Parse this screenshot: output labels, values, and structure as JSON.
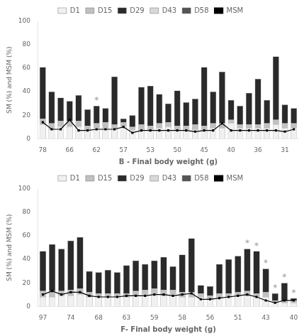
{
  "chart_data": [
    {
      "type": "bar",
      "stacked": true,
      "grid": false,
      "legend": "top",
      "xlabel": "B - Final body weight (g)",
      "ylabel": "SM (%) and MSM (%)",
      "categories": [
        "78",
        null,
        null,
        "66",
        null,
        null,
        "62",
        null,
        null,
        "57",
        null,
        null,
        "53",
        null,
        null,
        "50",
        null,
        null,
        "45",
        null,
        null,
        "40",
        null,
        null,
        "36",
        null,
        null,
        "31",
        null
      ],
      "ylim": [
        0,
        100
      ],
      "yticks": [
        0,
        20,
        40,
        60,
        80,
        100
      ],
      "series": [
        {
          "name": "D1",
          "type": "bar",
          "color": "#f0f0f0",
          "values": [
            12,
            8,
            10,
            10,
            10,
            8,
            9,
            9,
            9,
            10,
            7,
            8,
            8,
            9,
            10,
            8,
            8,
            8,
            8,
            9,
            9,
            13,
            9,
            9,
            9,
            9,
            12,
            9,
            9
          ]
        },
        {
          "name": "D15",
          "type": "bar",
          "color": "#c0c0c0",
          "values": [
            5,
            5,
            5,
            5,
            5,
            3,
            4,
            5,
            3,
            4,
            3,
            4,
            3,
            4,
            4,
            3,
            3,
            4,
            3,
            4,
            4,
            3,
            3,
            3,
            3,
            4,
            4,
            4,
            4
          ]
        },
        {
          "name": "D29",
          "type": "bar",
          "color": "#2a2a2a",
          "values": [
            44,
            27,
            20,
            17,
            22,
            14,
            15,
            12,
            41,
            3,
            10,
            32,
            34,
            25,
            16,
            30,
            20,
            22,
            50,
            27,
            44,
            17,
            16,
            27,
            39,
            20,
            54,
            16,
            13
          ]
        },
        {
          "name": "D43",
          "type": "bar",
          "color": "#d8d8d8",
          "values": [
            0,
            0,
            0,
            0,
            0,
            0,
            0,
            0,
            0,
            0,
            0,
            0,
            0,
            0,
            0,
            0,
            0,
            0,
            0,
            0,
            0,
            0,
            0,
            0,
            0,
            0,
            0,
            0,
            0
          ]
        },
        {
          "name": "D58",
          "type": "bar",
          "color": "#555555",
          "values": [
            0,
            0,
            0,
            0,
            0,
            0,
            0,
            0,
            0,
            0,
            0,
            0,
            0,
            0,
            0,
            0,
            0,
            0,
            0,
            0,
            0,
            0,
            0,
            0,
            0,
            0,
            0,
            0,
            0
          ]
        },
        {
          "name": "MSM",
          "type": "line",
          "color": "#000000",
          "marker": "square",
          "line_style": "solid",
          "values": [
            14,
            8,
            8,
            16,
            7,
            7,
            8,
            8,
            8,
            10,
            5,
            7,
            7,
            7,
            7,
            7,
            7,
            6,
            7,
            7,
            13,
            7,
            7,
            7,
            7,
            7,
            7,
            6,
            8
          ]
        }
      ],
      "annotations": [
        {
          "text": "*",
          "x": 6,
          "color": "#999999"
        }
      ]
    },
    {
      "type": "bar",
      "stacked": true,
      "grid": false,
      "legend": "top",
      "xlabel": "F- Final body weight (g)",
      "ylabel": "SM (%) and MSM (%)",
      "categories": [
        "97",
        null,
        null,
        "74",
        null,
        null,
        "68",
        null,
        null,
        "63",
        null,
        null,
        "59",
        null,
        null,
        "58",
        null,
        null,
        "56",
        null,
        null,
        "51",
        null,
        null,
        "43",
        null,
        null,
        "40"
      ],
      "ylim": [
        0,
        100
      ],
      "yticks": [
        0,
        20,
        40,
        60,
        80,
        100
      ],
      "series": [
        {
          "name": "D1",
          "type": "bar",
          "color": "#f0f0f0",
          "values": [
            8,
            8,
            9,
            9,
            10,
            8,
            8,
            8,
            8,
            8,
            9,
            10,
            10,
            9,
            10,
            8,
            8,
            8,
            6,
            8,
            8,
            9,
            9,
            8,
            8,
            3,
            3,
            3
          ]
        },
        {
          "name": "D15",
          "type": "bar",
          "color": "#c0c0c0",
          "values": [
            5,
            5,
            4,
            5,
            5,
            4,
            3,
            3,
            3,
            3,
            4,
            4,
            5,
            5,
            4,
            4,
            4,
            3,
            3,
            3,
            3,
            3,
            4,
            3,
            4,
            2,
            2,
            2
          ]
        },
        {
          "name": "D29",
          "type": "bar",
          "color": "#2a2a2a",
          "values": [
            34,
            40,
            36,
            42,
            44,
            18,
            18,
            20,
            18,
            24,
            26,
            22,
            24,
            28,
            20,
            32,
            46,
            7,
            8,
            25,
            29,
            31,
            36,
            36,
            20,
            6,
            15,
            2
          ]
        },
        {
          "name": "D43",
          "type": "bar",
          "color": "#d8d8d8",
          "values": [
            0,
            0,
            0,
            0,
            0,
            0,
            0,
            0,
            0,
            0,
            0,
            0,
            0,
            0,
            0,
            0,
            0,
            0,
            0,
            0,
            0,
            0,
            0,
            0,
            0,
            0,
            0,
            0
          ]
        },
        {
          "name": "D58",
          "type": "bar",
          "color": "#555555",
          "values": [
            0,
            0,
            0,
            0,
            0,
            0,
            0,
            0,
            0,
            0,
            0,
            0,
            0,
            0,
            0,
            0,
            0,
            0,
            0,
            0,
            0,
            0,
            0,
            0,
            0,
            0,
            0,
            0
          ]
        },
        {
          "name": "MSM",
          "type": "line",
          "color": "#000000",
          "marker": "square",
          "line_style": "solid",
          "values": [
            10,
            13,
            10,
            12,
            12,
            9,
            8,
            8,
            8,
            9,
            9,
            9,
            10,
            10,
            9,
            10,
            11,
            6,
            6,
            7,
            8,
            9,
            10,
            8,
            5,
            3,
            5,
            5
          ]
        }
      ],
      "annotations": [
        {
          "text": "*",
          "x": 22,
          "color": "#999999"
        },
        {
          "text": "*",
          "x": 23,
          "color": "#999999"
        },
        {
          "text": "*",
          "x": 24,
          "color": "#999999"
        },
        {
          "text": "*",
          "x": 25,
          "color": "#999999"
        },
        {
          "text": "*",
          "x": 26,
          "color": "#999999"
        },
        {
          "text": "*",
          "x": 27,
          "color": "#999999"
        }
      ]
    }
  ]
}
